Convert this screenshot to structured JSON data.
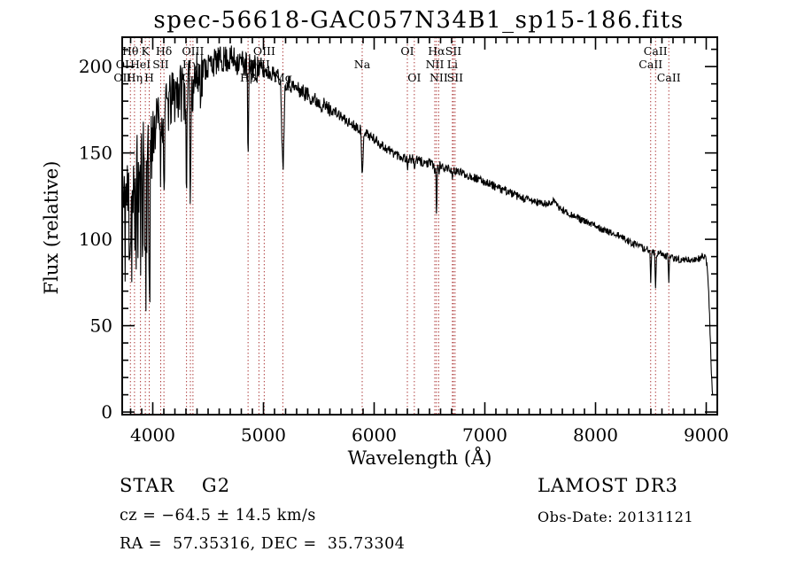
{
  "title": "spec-56618-GAC057N34B1_sp15-186.fits",
  "annotations": {
    "classification": "STAR    G2",
    "cz": "cz = −64.5 ± 14.5 km/s",
    "radec": "RA =  57.35316, DEC =  35.73304",
    "survey": "LAMOST DR3",
    "obs_date": "Obs-Date: 20131121"
  },
  "chart_data": {
    "type": "line",
    "title": "spec-56618-GAC057N34B1_sp15-186.fits",
    "xlabel": "Wavelength (Å)",
    "ylabel": "Flux (relative)",
    "xlim": [
      3724,
      9100
    ],
    "ylim": [
      -1.5,
      217
    ],
    "x_ticks": [
      4000,
      5000,
      6000,
      7000,
      8000,
      9000
    ],
    "x_minor_step": 100,
    "y_ticks": [
      0,
      50,
      100,
      150,
      200
    ],
    "y_minor_step": 10,
    "grid": false,
    "legend": "none",
    "series_color": "#000000",
    "line_marker_color": "#aa3333",
    "sample_step": 4,
    "noise_seed": 11,
    "noise_regions": [
      {
        "from": 3724,
        "to": 4000,
        "amp": 26,
        "neg_boost": 2.4
      },
      {
        "from": 4000,
        "to": 4450,
        "amp": 13,
        "neg_boost": 1.7
      },
      {
        "from": 4450,
        "to": 5000,
        "amp": 7.5,
        "neg_boost": 1.2
      },
      {
        "from": 5000,
        "to": 5600,
        "amp": 4.5,
        "neg_boost": 1.1
      },
      {
        "from": 5600,
        "to": 6600,
        "amp": 3.0,
        "neg_boost": 1.0
      },
      {
        "from": 6600,
        "to": 7600,
        "amp": 2.4,
        "neg_boost": 1.0
      },
      {
        "from": 7600,
        "to": 9100,
        "amp": 2.0,
        "neg_boost": 1.0
      }
    ],
    "continuum_points": [
      [
        3724,
        150
      ],
      [
        3735,
        110
      ],
      [
        3750,
        128
      ],
      [
        3770,
        125
      ],
      [
        3790,
        132
      ],
      [
        3810,
        122
      ],
      [
        3830,
        128
      ],
      [
        3850,
        138
      ],
      [
        3870,
        132
      ],
      [
        3890,
        145
      ],
      [
        3910,
        150
      ],
      [
        3935,
        152
      ],
      [
        3960,
        150
      ],
      [
        3980,
        155
      ],
      [
        4000,
        165
      ],
      [
        4030,
        170
      ],
      [
        4060,
        172
      ],
      [
        4090,
        176
      ],
      [
        4120,
        178
      ],
      [
        4160,
        183
      ],
      [
        4200,
        187
      ],
      [
        4240,
        189
      ],
      [
        4280,
        191
      ],
      [
        4320,
        193
      ],
      [
        4360,
        194
      ],
      [
        4400,
        196
      ],
      [
        4450,
        199
      ],
      [
        4500,
        201
      ],
      [
        4550,
        203
      ],
      [
        4600,
        204
      ],
      [
        4650,
        205
      ],
      [
        4700,
        205
      ],
      [
        4750,
        204
      ],
      [
        4800,
        203
      ],
      [
        4860,
        201
      ],
      [
        4920,
        200
      ],
      [
        4980,
        198
      ],
      [
        5040,
        197
      ],
      [
        5100,
        196
      ],
      [
        5160,
        193
      ],
      [
        5220,
        191
      ],
      [
        5280,
        188
      ],
      [
        5340,
        186
      ],
      [
        5400,
        184
      ],
      [
        5460,
        181
      ],
      [
        5520,
        179
      ],
      [
        5580,
        176
      ],
      [
        5640,
        174
      ],
      [
        5700,
        171
      ],
      [
        5760,
        168
      ],
      [
        5820,
        166
      ],
      [
        5880,
        164
      ],
      [
        5940,
        161
      ],
      [
        6000,
        158
      ],
      [
        6060,
        155
      ],
      [
        6120,
        152
      ],
      [
        6180,
        150
      ],
      [
        6240,
        148
      ],
      [
        6300,
        147
      ],
      [
        6360,
        146
      ],
      [
        6420,
        145
      ],
      [
        6480,
        144
      ],
      [
        6540,
        143
      ],
      [
        6600,
        142
      ],
      [
        6660,
        141
      ],
      [
        6720,
        140
      ],
      [
        6780,
        139
      ],
      [
        6840,
        137
      ],
      [
        6900,
        136
      ],
      [
        6960,
        134
      ],
      [
        7020,
        133
      ],
      [
        7080,
        131
      ],
      [
        7140,
        129
      ],
      [
        7200,
        128
      ],
      [
        7260,
        126
      ],
      [
        7320,
        124
      ],
      [
        7380,
        123
      ],
      [
        7440,
        122
      ],
      [
        7500,
        121
      ],
      [
        7560,
        120
      ],
      [
        7600,
        121
      ],
      [
        7620,
        124
      ],
      [
        7640,
        120
      ],
      [
        7700,
        117
      ],
      [
        7760,
        115
      ],
      [
        7820,
        113
      ],
      [
        7880,
        111
      ],
      [
        7940,
        109
      ],
      [
        8000,
        108
      ],
      [
        8060,
        106
      ],
      [
        8120,
        104
      ],
      [
        8180,
        103
      ],
      [
        8240,
        101
      ],
      [
        8300,
        99
      ],
      [
        8360,
        97
      ],
      [
        8420,
        95
      ],
      [
        8480,
        94
      ],
      [
        8540,
        92
      ],
      [
        8600,
        91
      ],
      [
        8660,
        90
      ],
      [
        8720,
        89
      ],
      [
        8780,
        88
      ],
      [
        8840,
        88
      ],
      [
        8900,
        88
      ],
      [
        8940,
        89
      ],
      [
        8970,
        91
      ],
      [
        9000,
        88
      ],
      [
        9015,
        80
      ],
      [
        9030,
        55
      ],
      [
        9045,
        25
      ],
      [
        9058,
        8
      ]
    ],
    "absorption_features": [
      {
        "label": "OI",
        "wavelength": 3727,
        "row": 2,
        "depth": 0,
        "sigma": 6
      },
      {
        "label": "OII",
        "wavelength": 3727,
        "row": 3,
        "depth": 0,
        "sigma": 6
      },
      {
        "label": "Hθ",
        "wavelength": 3798,
        "row": 1,
        "depth": 18,
        "sigma": 6
      },
      {
        "label": "Hη",
        "wavelength": 3835,
        "row": 3,
        "depth": 20,
        "sigma": 6
      },
      {
        "label": "HeI",
        "wavelength": 3889,
        "row": 2,
        "depth": 22,
        "sigma": 6
      },
      {
        "label": "K",
        "wavelength": 3933,
        "row": 1,
        "depth": 70,
        "sigma": 7
      },
      {
        "label": "H",
        "wavelength": 3968,
        "row": 3,
        "depth": 70,
        "sigma": 7
      },
      {
        "label": "SII",
        "wavelength": 4072,
        "row": 2,
        "depth": 25,
        "sigma": 5
      },
      {
        "label": "Hδ",
        "wavelength": 4101,
        "row": 1,
        "depth": 50,
        "sigma": 6
      },
      {
        "label": "G",
        "wavelength": 4305,
        "row": 3,
        "depth": 45,
        "sigma": 9
      },
      {
        "label": "Hγ",
        "wavelength": 4340,
        "row": 2,
        "depth": 65,
        "sigma": 6
      },
      {
        "label": "OIII",
        "wavelength": 4363,
        "row": 1,
        "depth": 0,
        "sigma": 5
      },
      {
        "label": "Hβ",
        "wavelength": 4861,
        "row": 3,
        "depth": 55,
        "sigma": 6
      },
      {
        "label": "OIII",
        "wavelength": 4959,
        "row": 2,
        "depth": 0,
        "sigma": 5
      },
      {
        "label": "OIII",
        "wavelength": 5007,
        "row": 1,
        "depth": 0,
        "sigma": 5
      },
      {
        "label": "Mg",
        "wavelength": 5175,
        "row": 3,
        "depth": 50,
        "sigma": 13
      },
      {
        "label": "Na",
        "wavelength": 5892,
        "row": 2,
        "depth": 27,
        "sigma": 9
      },
      {
        "label": "OI",
        "wavelength": 6300,
        "row": 1,
        "depth": 6,
        "sigma": 5
      },
      {
        "label": "OI",
        "wavelength": 6363,
        "row": 3,
        "depth": 5,
        "sigma": 5
      },
      {
        "label": "NII",
        "wavelength": 6548,
        "row": 2,
        "depth": 6,
        "sigma": 4
      },
      {
        "label": "Hα",
        "wavelength": 6563,
        "row": 1,
        "depth": 27,
        "sigma": 5
      },
      {
        "label": "NII",
        "wavelength": 6583,
        "row": 3,
        "depth": 5,
        "sigma": 4
      },
      {
        "label": "Li",
        "wavelength": 6707,
        "row": 2,
        "depth": 4,
        "sigma": 4
      },
      {
        "label": "SII",
        "wavelength": 6716,
        "row": 1,
        "depth": 4,
        "sigma": 4
      },
      {
        "label": "SII",
        "wavelength": 6731,
        "row": 3,
        "depth": 4,
        "sigma": 4
      },
      {
        "label": "CaII",
        "wavelength": 8498,
        "row": 2,
        "depth": 19,
        "sigma": 5
      },
      {
        "label": "CaII",
        "wavelength": 8542,
        "row": 1,
        "depth": 21,
        "sigma": 5
      },
      {
        "label": "CaII",
        "wavelength": 8662,
        "row": 3,
        "depth": 14,
        "sigma": 5
      }
    ]
  }
}
